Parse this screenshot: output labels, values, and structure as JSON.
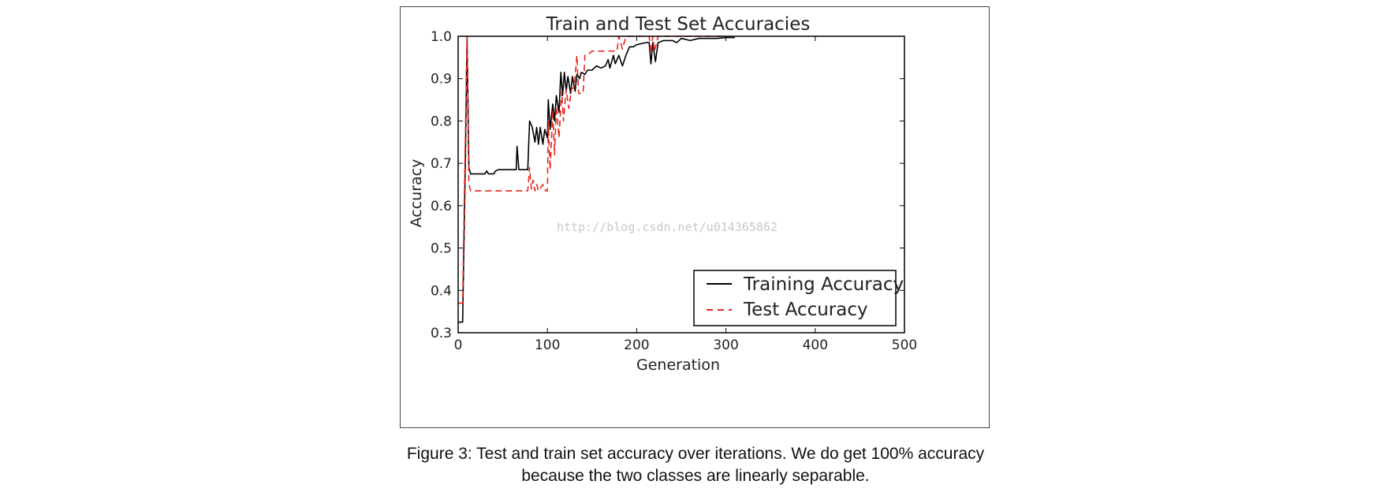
{
  "chart_data": {
    "type": "line",
    "title": "Train and Test Set Accuracies",
    "xlabel": "Generation",
    "ylabel": "Accuracy",
    "xlim": [
      0,
      500
    ],
    "ylim": [
      0.3,
      1.0
    ],
    "x_ticks": [
      0,
      100,
      200,
      300,
      400,
      500
    ],
    "y_ticks": [
      0.3,
      0.4,
      0.5,
      0.6,
      0.7,
      0.8,
      0.9,
      1.0
    ],
    "grid": false,
    "legend_position": "lower right",
    "series": [
      {
        "name": "Training Accuracy",
        "color": "#000000",
        "style": "solid",
        "points": [
          [
            0,
            0.325
          ],
          [
            5,
            0.325
          ],
          [
            8,
            0.7
          ],
          [
            10,
            1.0
          ],
          [
            12,
            0.69
          ],
          [
            14,
            0.675
          ],
          [
            20,
            0.675
          ],
          [
            30,
            0.675
          ],
          [
            32,
            0.682
          ],
          [
            34,
            0.675
          ],
          [
            40,
            0.675
          ],
          [
            42,
            0.682
          ],
          [
            45,
            0.685
          ],
          [
            60,
            0.685
          ],
          [
            65,
            0.685
          ],
          [
            66,
            0.74
          ],
          [
            68,
            0.685
          ],
          [
            78,
            0.685
          ],
          [
            80,
            0.8
          ],
          [
            83,
            0.785
          ],
          [
            86,
            0.75
          ],
          [
            88,
            0.785
          ],
          [
            90,
            0.745
          ],
          [
            92,
            0.785
          ],
          [
            95,
            0.745
          ],
          [
            97,
            0.78
          ],
          [
            100,
            0.76
          ],
          [
            101,
            0.85
          ],
          [
            103,
            0.78
          ],
          [
            106,
            0.84
          ],
          [
            108,
            0.8
          ],
          [
            110,
            0.86
          ],
          [
            113,
            0.82
          ],
          [
            115,
            0.915
          ],
          [
            117,
            0.86
          ],
          [
            119,
            0.915
          ],
          [
            121,
            0.87
          ],
          [
            123,
            0.905
          ],
          [
            126,
            0.865
          ],
          [
            128,
            0.905
          ],
          [
            131,
            0.87
          ],
          [
            133,
            0.91
          ],
          [
            136,
            0.9
          ],
          [
            138,
            0.915
          ],
          [
            142,
            0.91
          ],
          [
            145,
            0.92
          ],
          [
            150,
            0.92
          ],
          [
            155,
            0.93
          ],
          [
            160,
            0.925
          ],
          [
            165,
            0.93
          ],
          [
            168,
            0.945
          ],
          [
            170,
            0.925
          ],
          [
            174,
            0.955
          ],
          [
            176,
            0.935
          ],
          [
            180,
            0.955
          ],
          [
            184,
            0.93
          ],
          [
            188,
            0.955
          ],
          [
            192,
            0.975
          ],
          [
            196,
            0.975
          ],
          [
            200,
            0.98
          ],
          [
            210,
            0.985
          ],
          [
            214,
            0.985
          ],
          [
            216,
            0.935
          ],
          [
            218,
            0.985
          ],
          [
            221,
            0.94
          ],
          [
            224,
            0.985
          ],
          [
            230,
            0.99
          ],
          [
            240,
            0.99
          ],
          [
            245,
            0.985
          ],
          [
            250,
            0.995
          ],
          [
            260,
            0.99
          ],
          [
            270,
            0.995
          ],
          [
            280,
            0.995
          ],
          [
            290,
            0.995
          ],
          [
            300,
            0.997
          ],
          [
            310,
            0.997
          ]
        ]
      },
      {
        "name": "Test Accuracy",
        "color": "#e8261d",
        "style": "dashed",
        "points": [
          [
            0,
            0.37
          ],
          [
            5,
            0.37
          ],
          [
            7,
            0.63
          ],
          [
            10,
            1.0
          ],
          [
            12,
            0.65
          ],
          [
            14,
            0.635
          ],
          [
            30,
            0.635
          ],
          [
            60,
            0.635
          ],
          [
            78,
            0.635
          ],
          [
            80,
            0.69
          ],
          [
            82,
            0.64
          ],
          [
            84,
            0.66
          ],
          [
            86,
            0.635
          ],
          [
            88,
            0.65
          ],
          [
            90,
            0.635
          ],
          [
            95,
            0.65
          ],
          [
            98,
            0.635
          ],
          [
            100,
            0.635
          ],
          [
            101,
            0.8
          ],
          [
            103,
            0.685
          ],
          [
            106,
            0.825
          ],
          [
            108,
            0.72
          ],
          [
            110,
            0.835
          ],
          [
            113,
            0.76
          ],
          [
            116,
            0.87
          ],
          [
            118,
            0.8
          ],
          [
            121,
            0.875
          ],
          [
            124,
            0.83
          ],
          [
            127,
            0.875
          ],
          [
            130,
            0.88
          ],
          [
            133,
            0.955
          ],
          [
            135,
            0.865
          ],
          [
            140,
            0.865
          ],
          [
            142,
            0.955
          ],
          [
            145,
            0.955
          ],
          [
            150,
            0.965
          ],
          [
            160,
            0.965
          ],
          [
            170,
            0.965
          ],
          [
            178,
            0.965
          ],
          [
            180,
            1.0
          ],
          [
            184,
            0.97
          ],
          [
            188,
            1.0
          ],
          [
            200,
            1.0
          ],
          [
            210,
            1.0
          ],
          [
            214,
            1.0
          ],
          [
            216,
            0.96
          ],
          [
            218,
            1.0
          ],
          [
            220,
            0.965
          ],
          [
            224,
            1.0
          ],
          [
            230,
            1.0
          ],
          [
            260,
            1.0
          ],
          [
            300,
            1.0
          ]
        ]
      }
    ]
  },
  "watermark": "http://blog.csdn.net/u014365862",
  "caption": {
    "line1": "Figure 3: Test and train set accuracy over iterations. We do get 100% accuracy",
    "line2": "because the two classes are linearly separable."
  }
}
